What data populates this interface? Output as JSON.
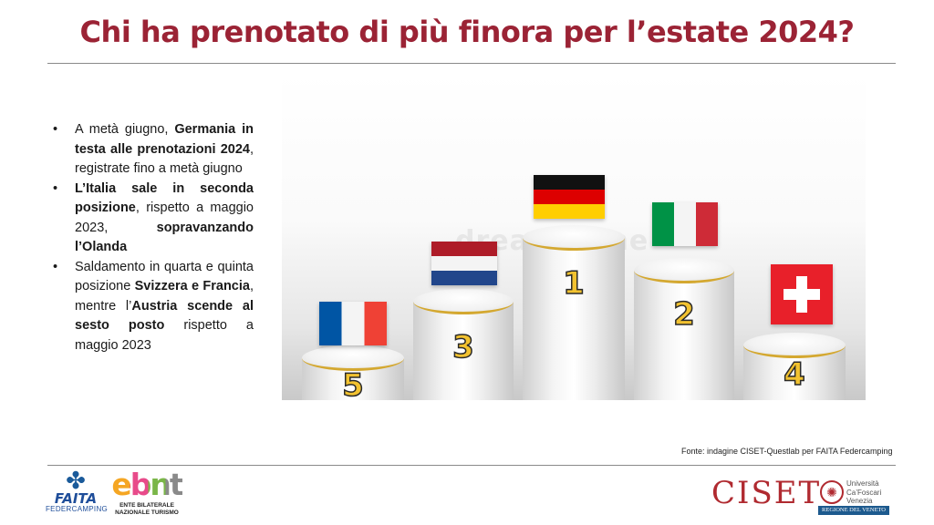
{
  "slide": {
    "title": "Chi ha prenotato di più finora per l’estate 2024?",
    "source": "Fonte: indagine CISET-Questlab per FAITA Federcamping"
  },
  "bullets": [
    {
      "segments": [
        {
          "text": "A metà giugno, ",
          "bold": false
        },
        {
          "text": "Germania in testa alle prenotazioni 2024",
          "bold": true
        },
        {
          "text": ", registrate fino a metà giugno",
          "bold": false
        }
      ]
    },
    {
      "segments": [
        {
          "text": "L’Italia sale in seconda posizione",
          "bold": true
        },
        {
          "text": ", rispetto a maggio 2023, ",
          "bold": false
        },
        {
          "text": "sopravanzando l’Olanda",
          "bold": true
        }
      ]
    },
    {
      "segments": [
        {
          "text": "Saldamento in quarta e quinta posizione ",
          "bold": false
        },
        {
          "text": "Svizzera e Francia",
          "bold": true
        },
        {
          "text": ", mentre l’",
          "bold": false
        },
        {
          "text": "Austria scende al sesto posto",
          "bold": true
        },
        {
          "text": " rispetto a maggio 2023",
          "bold": false
        }
      ]
    }
  ],
  "podium": {
    "watermark": "dreamstime",
    "places": [
      {
        "rank": "1",
        "country": "Germania",
        "flag_icon": "germany-flag-icon"
      },
      {
        "rank": "2",
        "country": "Italia",
        "flag_icon": "italy-flag-icon"
      },
      {
        "rank": "3",
        "country": "Olanda",
        "flag_icon": "netherlands-flag-icon"
      },
      {
        "rank": "4",
        "country": "Svizzera",
        "flag_icon": "switzerland-flag-icon"
      },
      {
        "rank": "5",
        "country": "Francia",
        "flag_icon": "france-flag-icon"
      }
    ],
    "accent_color": "#d4a830",
    "rank_color": "#f2c230"
  },
  "logos": {
    "faita_word": "FAITA",
    "faita_sub": "FEDERCAMPING",
    "ebnt_word": "ebnt",
    "ebnt_sub_1": "ENTE BILATERALE",
    "ebnt_sub_2": "NAZIONALE TURISMO",
    "ciset_word": "CISET",
    "unive_1": "Università",
    "unive_2": "Ca’Foscari",
    "unive_3": "Venezia",
    "regione": "REGIONE DEL VENETO"
  },
  "colors": {
    "title": "#9b2335",
    "ciset": "#b02a30",
    "faita": "#1f4e9a"
  }
}
